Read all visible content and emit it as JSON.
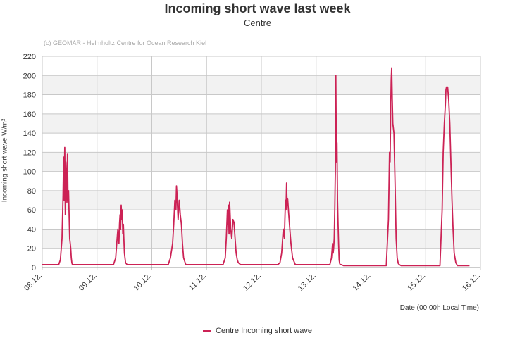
{
  "colors": {
    "series": "#cc2255",
    "band": "#f2f2f2",
    "grid": "#c8c8c8",
    "axis": "#333333"
  },
  "chart_data": {
    "type": "line",
    "title": "Incoming short wave last week",
    "subtitle": "Centre",
    "credit": "(c) GEOMAR - Helmholtz Centre for Ocean Research Kiel",
    "xlabel": "Date (00:00h Local Time)",
    "ylabel": "Incoming short wave W/m²",
    "ylim": [
      0,
      220
    ],
    "xlim": [
      0,
      8.0
    ],
    "yticks": [
      0,
      20,
      40,
      60,
      80,
      100,
      120,
      140,
      160,
      180,
      200,
      220
    ],
    "xticks": [
      0,
      1,
      2,
      3,
      4,
      5,
      6,
      7,
      8
    ],
    "xtick_labels": [
      "08.12.",
      "09.12.",
      "10.12.",
      "11.12.",
      "12.12.",
      "13.12.",
      "14.12.",
      "15.12.",
      "16.12."
    ],
    "grid": true,
    "legend_position": "bottom-center",
    "series": [
      {
        "name": "Centre Incoming short wave",
        "x": [
          0,
          0.3,
          0.33,
          0.36,
          0.38,
          0.39,
          0.4,
          0.41,
          0.42,
          0.43,
          0.44,
          0.45,
          0.46,
          0.47,
          0.48,
          0.49,
          0.5,
          0.51,
          0.52,
          0.53,
          0.54,
          0.55,
          0.56,
          0.57,
          0.58,
          0.6,
          0.62,
          0.65,
          1.0,
          1.3,
          1.34,
          1.36,
          1.38,
          1.39,
          1.4,
          1.41,
          1.42,
          1.43,
          1.44,
          1.45,
          1.46,
          1.47,
          1.48,
          1.49,
          1.5,
          1.52,
          1.55,
          1.58,
          2.0,
          2.3,
          2.34,
          2.38,
          2.4,
          2.42,
          2.44,
          2.45,
          2.46,
          2.48,
          2.5,
          2.52,
          2.54,
          2.56,
          2.58,
          2.62,
          3.0,
          3.3,
          3.34,
          3.36,
          3.38,
          3.39,
          3.4,
          3.41,
          3.42,
          3.44,
          3.46,
          3.48,
          3.5,
          3.52,
          3.54,
          3.56,
          3.58,
          3.62,
          4.0,
          4.3,
          4.34,
          4.37,
          4.4,
          4.42,
          4.43,
          4.44,
          4.45,
          4.46,
          4.47,
          4.48,
          4.5,
          4.52,
          4.54,
          4.57,
          4.62,
          5.0,
          5.25,
          5.28,
          5.3,
          5.31,
          5.32,
          5.33,
          5.34,
          5.35,
          5.36,
          5.37,
          5.38,
          5.39,
          5.4,
          5.41,
          5.42,
          5.43,
          5.44,
          5.46,
          5.5,
          6.0,
          6.28,
          6.32,
          6.34,
          6.35,
          6.36,
          6.37,
          6.38,
          6.39,
          6.4,
          6.42,
          6.44,
          6.45,
          6.46,
          6.48,
          6.5,
          6.52,
          6.55,
          6.6,
          7.0,
          7.26,
          7.3,
          7.32,
          7.34,
          7.36,
          7.37,
          7.38,
          7.4,
          7.42,
          7.44,
          7.46,
          7.48,
          7.5,
          7.52,
          7.55,
          7.58,
          7.6,
          7.8
        ],
        "values": [
          3,
          3,
          8,
          30,
          75,
          115,
          70,
          125,
          55,
          110,
          95,
          68,
          118,
          70,
          80,
          55,
          30,
          25,
          20,
          10,
          5,
          3,
          3,
          3,
          3,
          3,
          3,
          3,
          3,
          3,
          10,
          25,
          40,
          30,
          25,
          45,
          55,
          40,
          65,
          50,
          60,
          35,
          45,
          30,
          15,
          5,
          3,
          3,
          3,
          3,
          10,
          25,
          45,
          70,
          60,
          85,
          75,
          50,
          70,
          55,
          45,
          25,
          10,
          3,
          3,
          3,
          10,
          30,
          60,
          45,
          65,
          35,
          68,
          40,
          30,
          50,
          47,
          30,
          15,
          8,
          5,
          3,
          3,
          3,
          5,
          15,
          40,
          30,
          50,
          70,
          60,
          88,
          65,
          72,
          55,
          40,
          25,
          10,
          3,
          3,
          3,
          10,
          25,
          15,
          20,
          30,
          60,
          100,
          200,
          110,
          130,
          70,
          45,
          25,
          8,
          4,
          3,
          3,
          2,
          2,
          2,
          50,
          120,
          110,
          160,
          195,
          208,
          175,
          150,
          140,
          90,
          60,
          30,
          10,
          4,
          3,
          2,
          2,
          2,
          2,
          60,
          120,
          150,
          170,
          185,
          188,
          188,
          175,
          150,
          110,
          70,
          40,
          15,
          5,
          2,
          2,
          2
        ]
      }
    ]
  }
}
